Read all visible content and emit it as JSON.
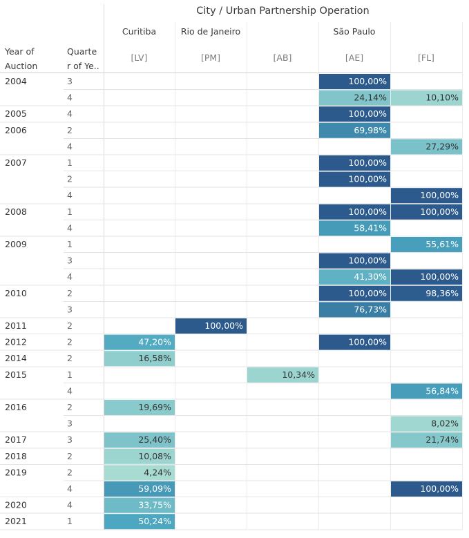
{
  "chart_data": {
    "type": "heatmap",
    "title": "City / Urban Partnership Operation",
    "row_headers": [
      "Year of Auction",
      "Quarter of Year"
    ],
    "row_headers_display": [
      "Year of\nAuction",
      "Quarte\nr of Ye.."
    ],
    "cities": [
      {
        "name": "Curitiba",
        "columns": [
          "[LV]"
        ]
      },
      {
        "name": "Rio de Janeiro",
        "columns": [
          "[PM]"
        ]
      },
      {
        "name": "São Paulo",
        "columns": [
          "[AB]",
          "[AE]",
          "[FL]"
        ]
      }
    ],
    "columns": [
      "[LV]",
      "[PM]",
      "[AB]",
      "[AE]",
      "[FL]"
    ],
    "number_format": "percent, 2 decimals, comma decimal separator",
    "rows": [
      {
        "year": "2004",
        "quarter": "3",
        "values": [
          null,
          null,
          null,
          100.0,
          null
        ]
      },
      {
        "year": "2004",
        "quarter": "4",
        "values": [
          null,
          null,
          null,
          24.14,
          10.1
        ]
      },
      {
        "year": "2005",
        "quarter": "4",
        "values": [
          null,
          null,
          null,
          100.0,
          null
        ]
      },
      {
        "year": "2006",
        "quarter": "2",
        "values": [
          null,
          null,
          null,
          69.98,
          null
        ]
      },
      {
        "year": "2006",
        "quarter": "4",
        "values": [
          null,
          null,
          null,
          null,
          27.29
        ]
      },
      {
        "year": "2007",
        "quarter": "1",
        "values": [
          null,
          null,
          null,
          100.0,
          null
        ]
      },
      {
        "year": "2007",
        "quarter": "2",
        "values": [
          null,
          null,
          null,
          100.0,
          null
        ]
      },
      {
        "year": "2007",
        "quarter": "4",
        "values": [
          null,
          null,
          null,
          null,
          100.0
        ]
      },
      {
        "year": "2008",
        "quarter": "1",
        "values": [
          null,
          null,
          null,
          100.0,
          100.0
        ]
      },
      {
        "year": "2008",
        "quarter": "4",
        "values": [
          null,
          null,
          null,
          58.41,
          null
        ]
      },
      {
        "year": "2009",
        "quarter": "1",
        "values": [
          null,
          null,
          null,
          null,
          55.61
        ]
      },
      {
        "year": "2009",
        "quarter": "3",
        "values": [
          null,
          null,
          null,
          100.0,
          null
        ]
      },
      {
        "year": "2009",
        "quarter": "4",
        "values": [
          null,
          null,
          null,
          41.3,
          100.0
        ]
      },
      {
        "year": "2010",
        "quarter": "2",
        "values": [
          null,
          null,
          null,
          100.0,
          98.36
        ]
      },
      {
        "year": "2010",
        "quarter": "3",
        "values": [
          null,
          null,
          null,
          76.73,
          null
        ]
      },
      {
        "year": "2011",
        "quarter": "2",
        "values": [
          null,
          100.0,
          null,
          null,
          null
        ]
      },
      {
        "year": "2012",
        "quarter": "2",
        "values": [
          47.2,
          null,
          null,
          100.0,
          null
        ]
      },
      {
        "year": "2014",
        "quarter": "2",
        "values": [
          16.58,
          null,
          null,
          null,
          null
        ]
      },
      {
        "year": "2015",
        "quarter": "1",
        "values": [
          null,
          null,
          10.34,
          null,
          null
        ]
      },
      {
        "year": "2015",
        "quarter": "4",
        "values": [
          null,
          null,
          null,
          null,
          56.84
        ]
      },
      {
        "year": "2016",
        "quarter": "2",
        "values": [
          19.69,
          null,
          null,
          null,
          null
        ]
      },
      {
        "year": "2016",
        "quarter": "3",
        "values": [
          null,
          null,
          null,
          null,
          8.02
        ]
      },
      {
        "year": "2017",
        "quarter": "3",
        "values": [
          25.4,
          null,
          null,
          null,
          21.74
        ]
      },
      {
        "year": "2018",
        "quarter": "2",
        "values": [
          10.08,
          null,
          null,
          null,
          null
        ]
      },
      {
        "year": "2019",
        "quarter": "2",
        "values": [
          4.24,
          null,
          null,
          null,
          null
        ]
      },
      {
        "year": "2019",
        "quarter": "4",
        "values": [
          59.09,
          null,
          null,
          null,
          100.0
        ]
      },
      {
        "year": "2020",
        "quarter": "4",
        "values": [
          33.75,
          null,
          null,
          null,
          null
        ]
      },
      {
        "year": "2021",
        "quarter": "1",
        "values": [
          50.24,
          null,
          null,
          null,
          null
        ]
      }
    ],
    "color_scale": {
      "low": "#a8dcd2",
      "mid": "#4aa5bf",
      "high": "#2c5a8c",
      "text_on_dark": "#ffffff",
      "text_on_light": "#333333"
    },
    "grid": true,
    "legend": "none"
  }
}
